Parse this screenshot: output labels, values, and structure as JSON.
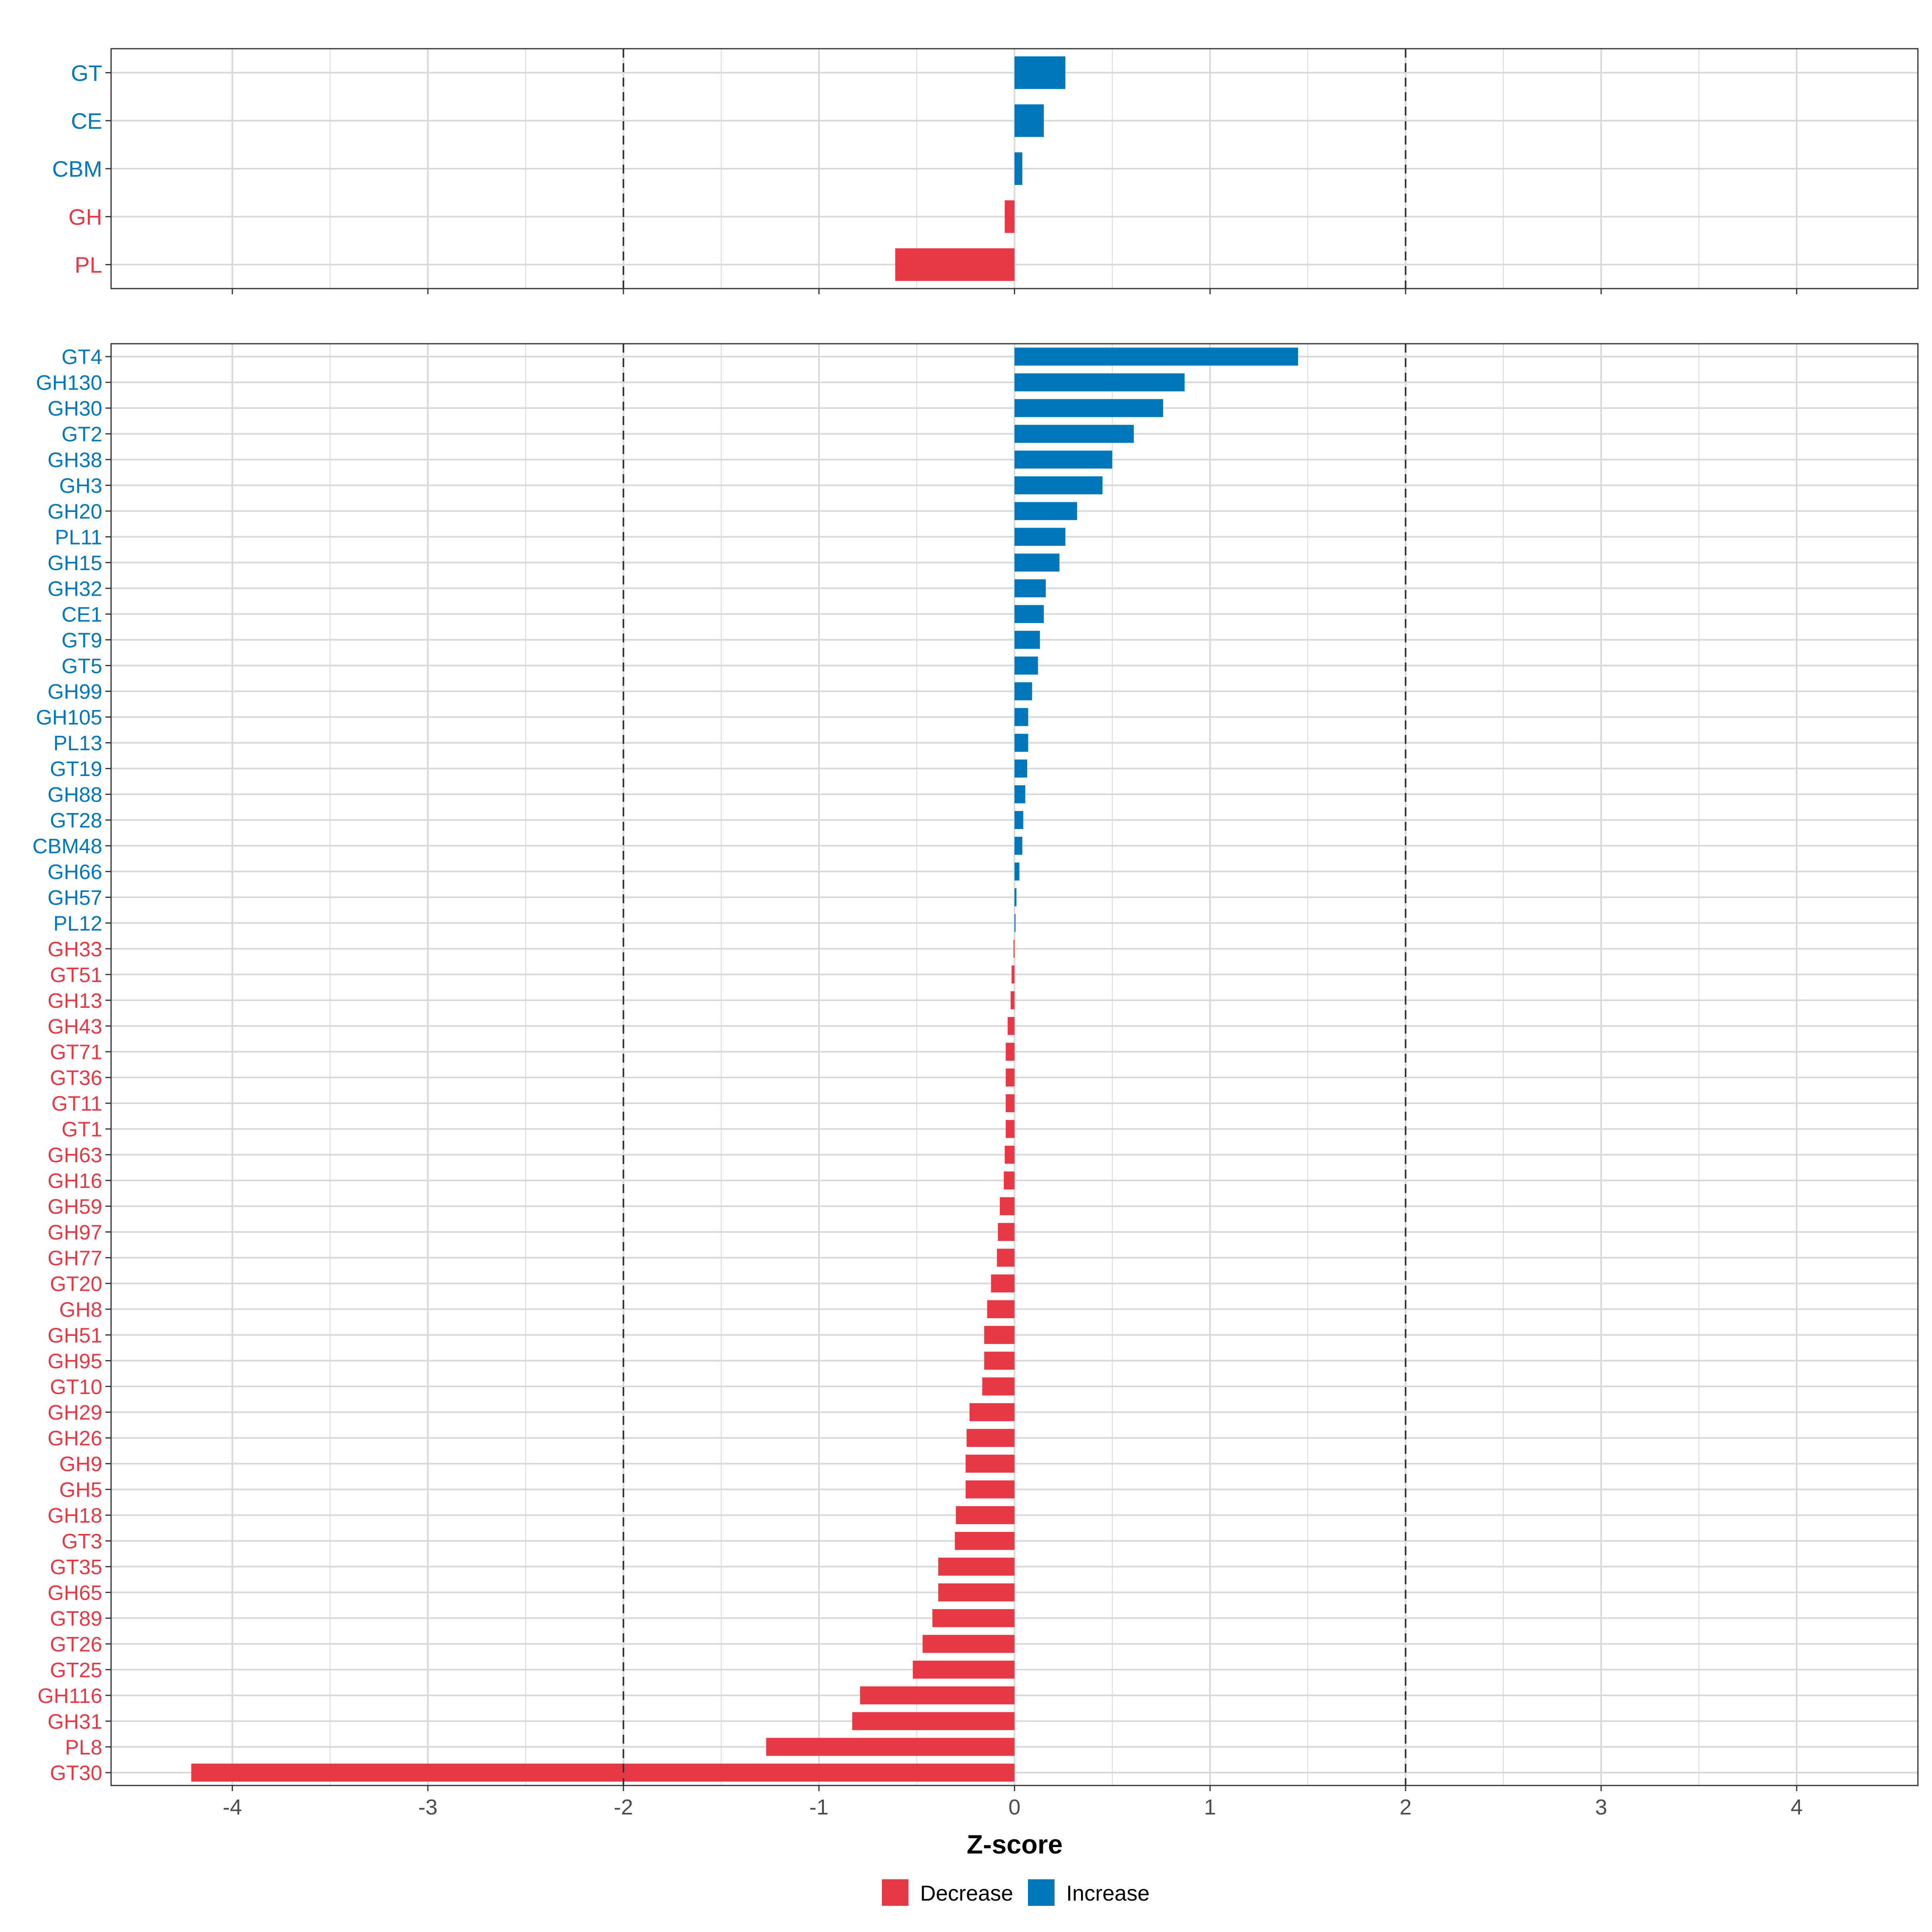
{
  "colors": {
    "decrease": "#E63946",
    "increase": "#0077BB",
    "grid": "#D9D9D9",
    "panel_border": "#333333",
    "ref_line": "#333333",
    "tick_text": "#4D4D4D"
  },
  "chart_data": [
    {
      "type": "bar",
      "orientation": "horizontal",
      "panel": "top",
      "categories": [
        "GT",
        "CE",
        "CBM",
        "GH",
        "PL"
      ],
      "values": [
        0.26,
        0.15,
        0.04,
        -0.05,
        -0.61
      ],
      "xlim": [
        -4.62,
        4.62
      ],
      "reference_lines": [
        -2,
        2
      ]
    },
    {
      "type": "bar",
      "orientation": "horizontal",
      "panel": "bottom",
      "categories": [
        "GT4",
        "GH130",
        "GH30",
        "GT2",
        "GH38",
        "GH3",
        "GH20",
        "PL11",
        "GH15",
        "GH32",
        "CE1",
        "GT9",
        "GT5",
        "GH99",
        "GH105",
        "PL13",
        "GT19",
        "GH88",
        "GT28",
        "CBM48",
        "GH66",
        "GH57",
        "PL12",
        "GH33",
        "GT51",
        "GH13",
        "GH43",
        "GT71",
        "GT36",
        "GT11",
        "GT1",
        "GH63",
        "GH16",
        "GH59",
        "GH97",
        "GH77",
        "GT20",
        "GH8",
        "GH51",
        "GH95",
        "GT10",
        "GH29",
        "GH26",
        "GH9",
        "GH5",
        "GH18",
        "GT3",
        "GT35",
        "GH65",
        "GT89",
        "GT26",
        "GT25",
        "GH116",
        "GH31",
        "PL8",
        "GT30"
      ],
      "values": [
        1.45,
        0.87,
        0.76,
        0.61,
        0.5,
        0.45,
        0.32,
        0.26,
        0.23,
        0.16,
        0.15,
        0.13,
        0.12,
        0.09,
        0.07,
        0.07,
        0.065,
        0.055,
        0.045,
        0.04,
        0.025,
        0.01,
        0.005,
        -0.005,
        -0.015,
        -0.02,
        -0.035,
        -0.045,
        -0.045,
        -0.045,
        -0.045,
        -0.05,
        -0.055,
        -0.075,
        -0.085,
        -0.09,
        -0.12,
        -0.14,
        -0.155,
        -0.155,
        -0.165,
        -0.23,
        -0.245,
        -0.25,
        -0.25,
        -0.3,
        -0.305,
        -0.39,
        -0.39,
        -0.42,
        -0.47,
        -0.52,
        -0.79,
        -0.83,
        -1.27,
        -4.21
      ],
      "xlim": [
        -4.62,
        4.62
      ],
      "xticks": [
        -4,
        -3,
        -2,
        -1,
        0,
        1,
        2,
        3,
        4
      ],
      "xtick_labels": [
        "-4",
        "-3",
        "-2",
        "-1",
        "0",
        "1",
        "2",
        "3",
        "4"
      ],
      "xlabel": "Z-score",
      "reference_lines": [
        -2,
        2
      ]
    }
  ],
  "legend": {
    "position": "bottom",
    "items": [
      {
        "label": "Decrease",
        "color_key": "decrease"
      },
      {
        "label": "Increase",
        "color_key": "increase"
      }
    ]
  }
}
